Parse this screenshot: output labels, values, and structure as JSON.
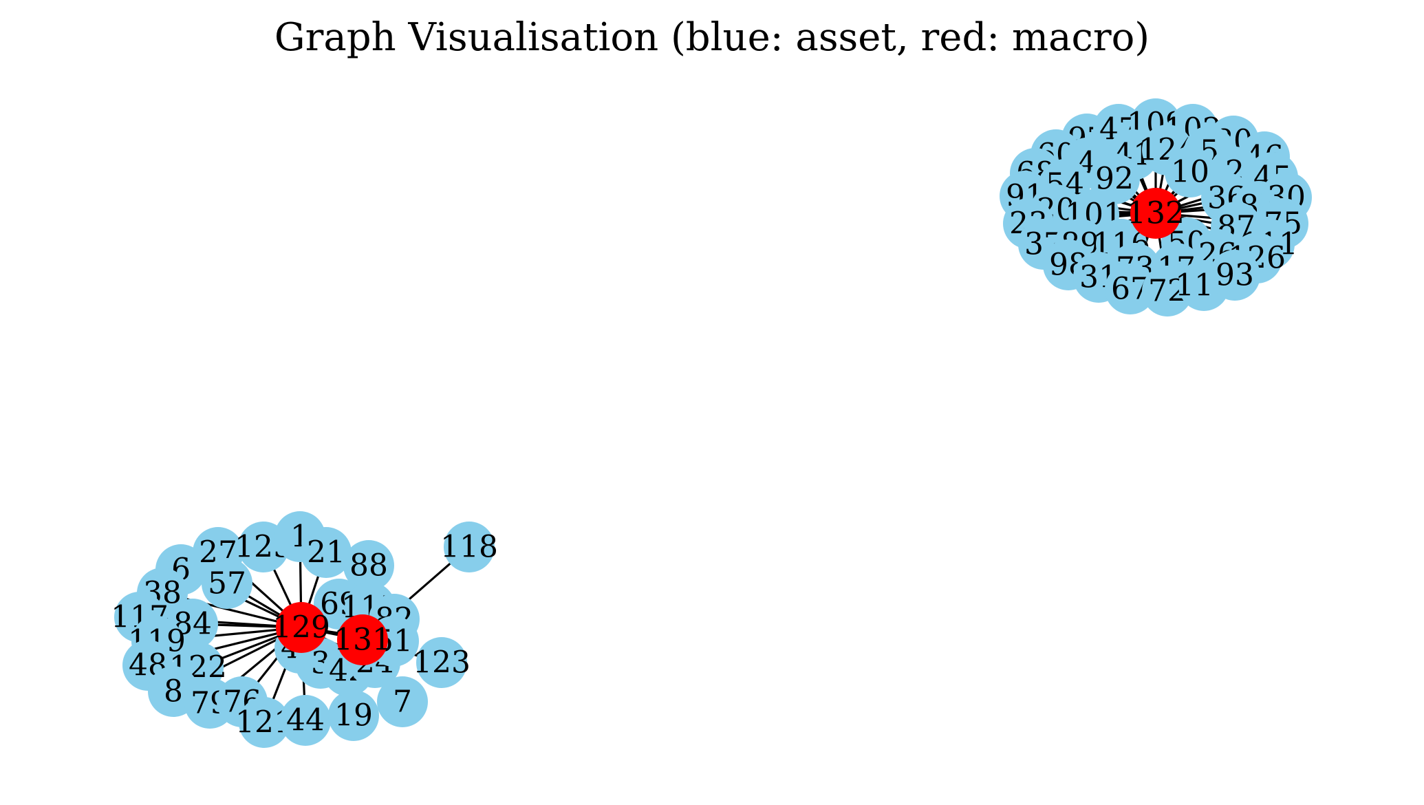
{
  "title": "Graph Visualisation (blue: asset, red: macro)",
  "colors": {
    "asset": "#87CEEB",
    "macro": "#FF0000",
    "edge": "#000000"
  },
  "components": [
    {
      "hubs": [
        "129",
        "131"
      ],
      "hub_edges": [
        [
          "129",
          "131"
        ]
      ],
      "nodes_129": [
        "6",
        "27",
        "125",
        "1",
        "21",
        "88",
        "57",
        "38",
        "117",
        "84",
        "119",
        "48",
        "122",
        "8",
        "79",
        "76",
        "121",
        "44",
        "19",
        "69",
        "115",
        "82",
        "49",
        "3",
        "42",
        "24",
        "51"
      ],
      "nodes_131": [
        "118",
        "123",
        "7",
        "115",
        "82",
        "51",
        "24",
        "42"
      ]
    },
    {
      "hubs": [
        "132"
      ],
      "nodes_132": [
        "97",
        "47",
        "109",
        "102",
        "80",
        "46",
        "60",
        "4",
        "41",
        "124",
        "5",
        "68",
        "54",
        "92",
        "10",
        "2",
        "45",
        "91",
        "20",
        "101",
        "36",
        "85",
        "30",
        "23",
        "87",
        "75",
        "37",
        "89",
        "116",
        "50",
        "26",
        "111",
        "98",
        "73",
        "17",
        "126",
        "31",
        "67",
        "72",
        "110",
        "93"
      ]
    }
  ]
}
